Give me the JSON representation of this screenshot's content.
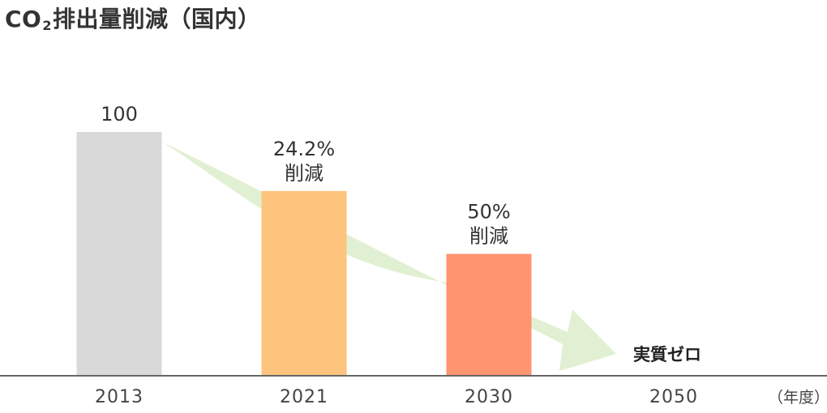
{
  "title": {
    "prefix": "CO",
    "subscript": "2",
    "main": "排出量削減",
    "suffix": "（国内）"
  },
  "chart_data": {
    "type": "bar",
    "categories": [
      "2013",
      "2021",
      "2030",
      "2050"
    ],
    "values": [
      100,
      75.8,
      50,
      0
    ],
    "ylim": [
      0,
      100
    ],
    "data_labels": [
      [
        "100"
      ],
      [
        "24.2%",
        "削減"
      ],
      [
        "50%",
        "削減"
      ],
      [
        "実質ゼロ"
      ]
    ],
    "colors": [
      "#d9d9d9",
      "#fec37d",
      "#ff9470",
      "#dceccd"
    ],
    "arrow_color": "#e1f0d2",
    "axis_color": "#666666",
    "x_unit_label": "（年度）",
    "grid": false
  }
}
